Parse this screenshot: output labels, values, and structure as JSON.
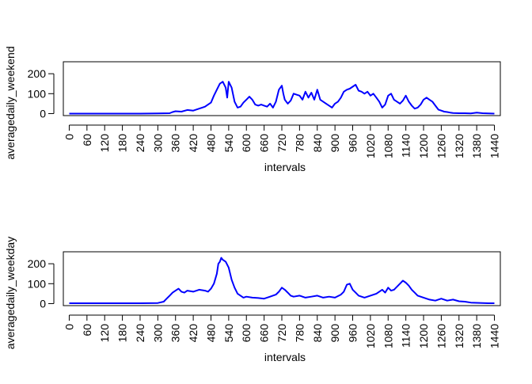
{
  "chart_data": [
    {
      "type": "line",
      "xlabel": "intervals",
      "ylabel": "averagedaily_weekend",
      "xticks": [
        0,
        60,
        120,
        180,
        240,
        300,
        360,
        420,
        480,
        540,
        600,
        660,
        720,
        780,
        840,
        900,
        960,
        1020,
        1080,
        1140,
        1200,
        1260,
        1320,
        1380,
        1440
      ],
      "yticks": [
        0,
        100,
        200
      ],
      "xlim": [
        -20,
        1460
      ],
      "ylim": [
        -10,
        260
      ],
      "line_color": "#0000ff",
      "grid": false,
      "legend": "none",
      "series": [
        {
          "x": [
            0,
            60,
            120,
            180,
            240,
            300,
            340,
            350,
            360,
            380,
            400,
            420,
            440,
            460,
            470,
            480,
            490,
            500,
            510,
            520,
            530,
            535,
            540,
            550,
            560,
            570,
            580,
            590,
            600,
            610,
            620,
            630,
            640,
            650,
            660,
            670,
            680,
            690,
            700,
            710,
            720,
            725,
            730,
            740,
            750,
            760,
            770,
            780,
            790,
            800,
            810,
            820,
            830,
            840,
            850,
            860,
            870,
            880,
            890,
            900,
            910,
            920,
            930,
            940,
            950,
            960,
            970,
            980,
            990,
            1000,
            1010,
            1020,
            1030,
            1040,
            1050,
            1060,
            1070,
            1080,
            1090,
            1100,
            1110,
            1120,
            1130,
            1140,
            1150,
            1160,
            1170,
            1180,
            1190,
            1200,
            1210,
            1220,
            1230,
            1240,
            1250,
            1260,
            1270,
            1280,
            1290,
            1300,
            1320,
            1340,
            1360,
            1380,
            1400,
            1420,
            1440
          ],
          "values": [
            0,
            0,
            0,
            0,
            0,
            1,
            2,
            8,
            12,
            10,
            18,
            15,
            25,
            35,
            45,
            55,
            90,
            120,
            150,
            160,
            130,
            80,
            160,
            130,
            60,
            30,
            35,
            55,
            70,
            85,
            70,
            45,
            40,
            45,
            40,
            35,
            50,
            30,
            60,
            120,
            140,
            100,
            70,
            50,
            65,
            100,
            95,
            90,
            70,
            110,
            80,
            105,
            70,
            120,
            70,
            60,
            50,
            40,
            30,
            50,
            60,
            80,
            110,
            120,
            125,
            135,
            145,
            115,
            110,
            100,
            110,
            90,
            100,
            80,
            60,
            30,
            45,
            90,
            100,
            70,
            60,
            50,
            65,
            90,
            60,
            40,
            25,
            30,
            45,
            70,
            80,
            70,
            60,
            40,
            20,
            15,
            10,
            8,
            5,
            3,
            2,
            2,
            1,
            5,
            2,
            1,
            0
          ]
        }
      ]
    },
    {
      "type": "line",
      "xlabel": "intervals",
      "ylabel": "averagedaily_weekday",
      "xticks": [
        0,
        60,
        120,
        180,
        240,
        300,
        360,
        420,
        480,
        540,
        600,
        660,
        720,
        780,
        840,
        900,
        960,
        1020,
        1080,
        1140,
        1200,
        1260,
        1320,
        1380,
        1440
      ],
      "yticks": [
        0,
        100,
        200
      ],
      "xlim": [
        -20,
        1460
      ],
      "ylim": [
        -10,
        260
      ],
      "line_color": "#0000ff",
      "grid": false,
      "legend": "none",
      "series": [
        {
          "x": [
            0,
            60,
            120,
            180,
            240,
            300,
            320,
            330,
            340,
            350,
            360,
            370,
            380,
            390,
            400,
            420,
            440,
            460,
            470,
            480,
            490,
            500,
            505,
            510,
            515,
            520,
            530,
            540,
            550,
            560,
            570,
            580,
            590,
            600,
            620,
            640,
            660,
            680,
            700,
            710,
            720,
            730,
            740,
            750,
            760,
            780,
            800,
            820,
            840,
            860,
            880,
            900,
            920,
            930,
            940,
            950,
            960,
            970,
            980,
            1000,
            1020,
            1040,
            1050,
            1060,
            1070,
            1080,
            1090,
            1100,
            1110,
            1120,
            1130,
            1140,
            1150,
            1160,
            1170,
            1180,
            1200,
            1220,
            1240,
            1260,
            1270,
            1280,
            1300,
            1320,
            1340,
            1360,
            1380,
            1400,
            1420,
            1440
          ],
          "values": [
            2,
            2,
            2,
            2,
            2,
            3,
            10,
            25,
            40,
            55,
            65,
            75,
            60,
            55,
            65,
            60,
            70,
            65,
            60,
            75,
            100,
            150,
            200,
            210,
            230,
            220,
            210,
            180,
            120,
            80,
            50,
            40,
            30,
            35,
            30,
            28,
            25,
            35,
            45,
            60,
            80,
            70,
            55,
            40,
            35,
            40,
            30,
            35,
            40,
            30,
            35,
            30,
            45,
            60,
            95,
            100,
            70,
            55,
            40,
            30,
            40,
            50,
            60,
            70,
            55,
            80,
            65,
            70,
            85,
            100,
            115,
            105,
            90,
            70,
            55,
            40,
            30,
            20,
            15,
            25,
            20,
            15,
            20,
            12,
            10,
            5,
            4,
            3,
            2,
            2
          ]
        }
      ]
    }
  ]
}
